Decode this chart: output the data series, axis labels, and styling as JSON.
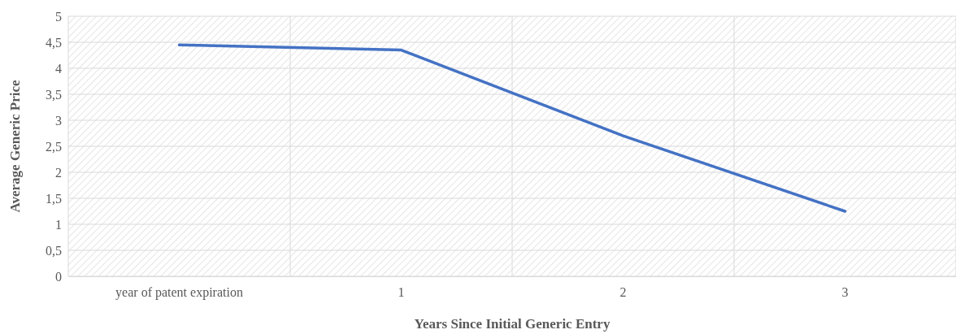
{
  "chart_data": {
    "type": "line",
    "xlabel": "Years Since Initial Generic Entry",
    "ylabel": "Average Generic Price",
    "categories": [
      "year of patent expiration",
      "1",
      "2",
      "3"
    ],
    "series": [
      {
        "color": "#4472c4",
        "values": [
          4.45,
          4.35,
          2.7,
          1.25
        ]
      }
    ],
    "ylim": [
      0,
      5
    ],
    "yticks": [
      0,
      {
        "value": 0.5,
        "label": "0,5"
      },
      1,
      {
        "value": 1.5,
        "label": "1,5"
      },
      2,
      {
        "value": 2.5,
        "label": "2,5"
      },
      3,
      {
        "value": 3.5,
        "label": "3,5"
      },
      4,
      {
        "value": 4.5,
        "label": "4,5"
      },
      5
    ],
    "grid": true,
    "marker": "none",
    "line_style": "solid"
  }
}
